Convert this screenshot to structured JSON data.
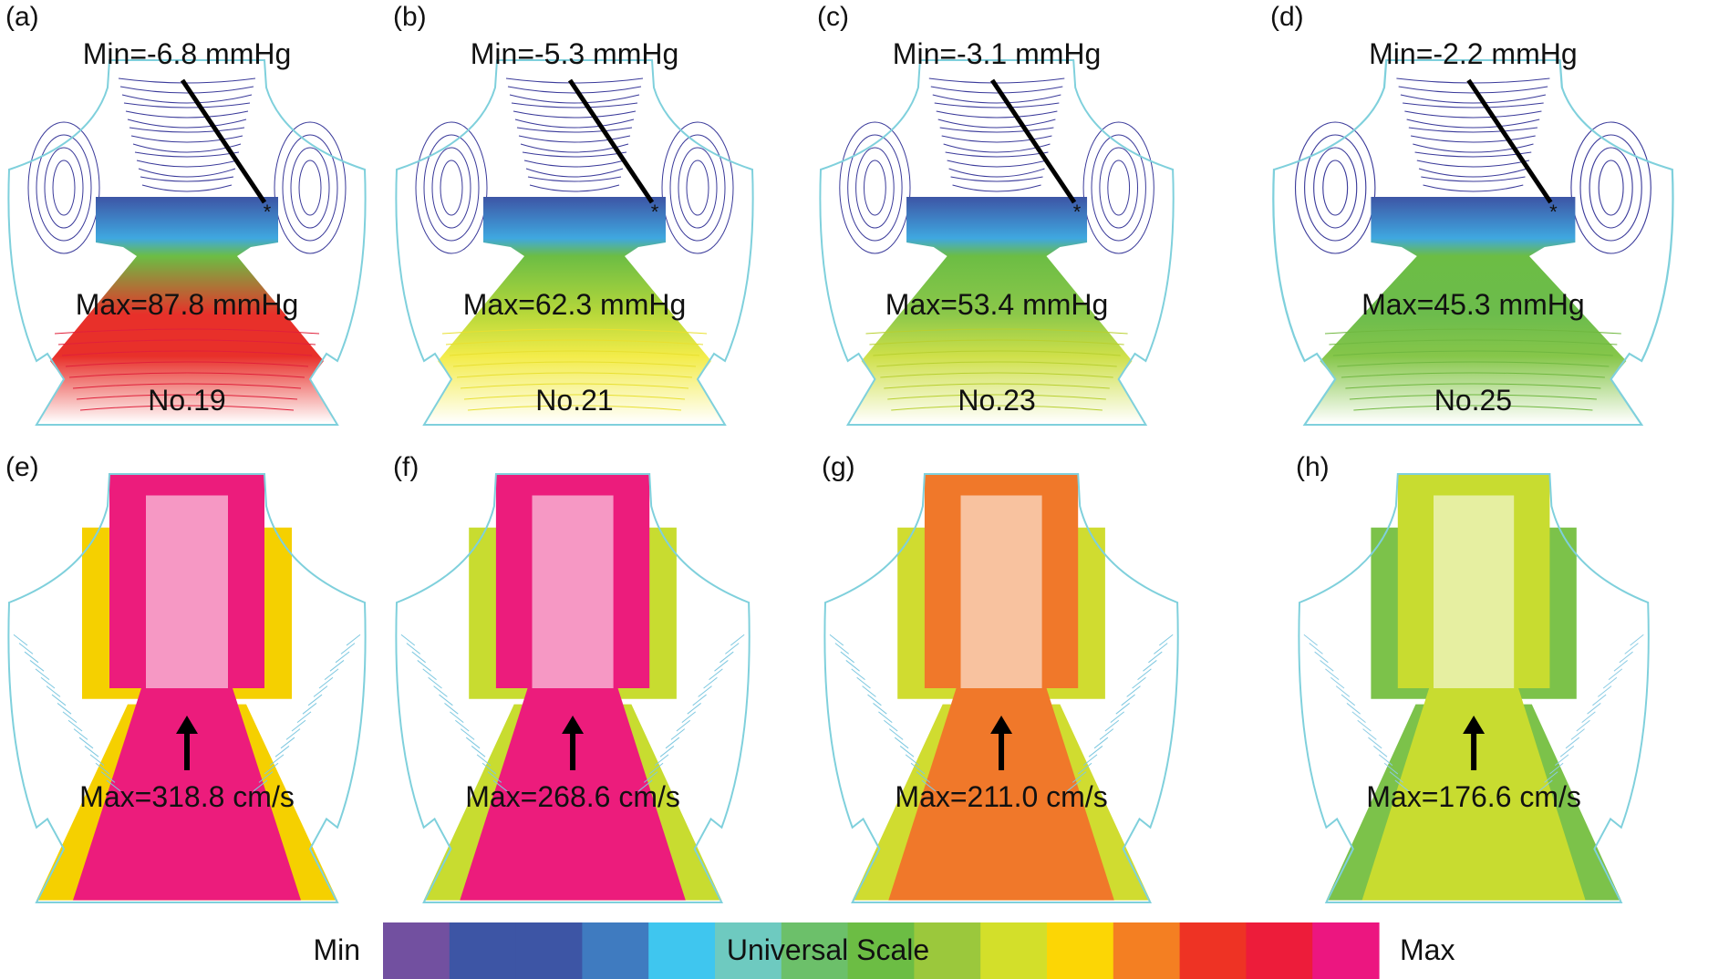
{
  "panels_top": [
    {
      "label": "(a)",
      "min": "Min=-6.8 mmHg",
      "max": "Max=87.8 mmHg",
      "case": "No.19",
      "fill": "#e8302a",
      "band": "#e8302a",
      "lines": "#e0203a"
    },
    {
      "label": "(b)",
      "min": "Min=-5.3 mmHg",
      "max": "Max=62.3 mmHg",
      "case": "No.21",
      "fill": "#f3ec4a",
      "band": "#b8d83a",
      "lines": "#e8e030"
    },
    {
      "label": "(c)",
      "min": "Min=-3.1 mmHg",
      "max": "Max=53.4 mmHg",
      "case": "No.23",
      "fill": "#cfe04a",
      "band": "#8cc84a",
      "lines": "#b8d030"
    },
    {
      "label": "(d)",
      "min": "Min=-2.2 mmHg",
      "max": "Max=45.3 mmHg",
      "case": "No.25",
      "fill": "#86c64a",
      "band": "#6cbc4c",
      "lines": "#70b840"
    }
  ],
  "panels_bottom": [
    {
      "label": "(e)",
      "max": "Max=318.8 cm/s",
      "core": "#ec1c7c",
      "side": "#f5d000",
      "outer": "#7ec8e0"
    },
    {
      "label": "(f)",
      "max": "Max=268.6 cm/s",
      "core": "#ec1c7c",
      "side": "#c8dc30",
      "outer": "#7ec8e0"
    },
    {
      "label": "(g)",
      "max": "Max=211.0 cm/s",
      "core": "#f0782a",
      "side": "#d0dc30",
      "outer": "#7ec8e0"
    },
    {
      "label": "(h)",
      "max": "Max=176.6 cm/s",
      "core": "#c8dc30",
      "side": "#7cc24a",
      "outer": "#8ccce4"
    }
  ],
  "colorbar": {
    "min_label": "Min",
    "max_label": "Max",
    "title": "Universal Scale",
    "colors": [
      "#7250a0",
      "#3d55a5",
      "#3d55a5",
      "#3f7bc0",
      "#3fc6ef",
      "#6ecac0",
      "#6cc06a",
      "#6cbd44",
      "#9bc83c",
      "#d3df2a",
      "#fcd605",
      "#f47f22",
      "#ee3324",
      "#ed1c3a",
      "#ec1680"
    ]
  },
  "outline_color": "#7fd0dc",
  "contour_color": "#3a3a9a"
}
